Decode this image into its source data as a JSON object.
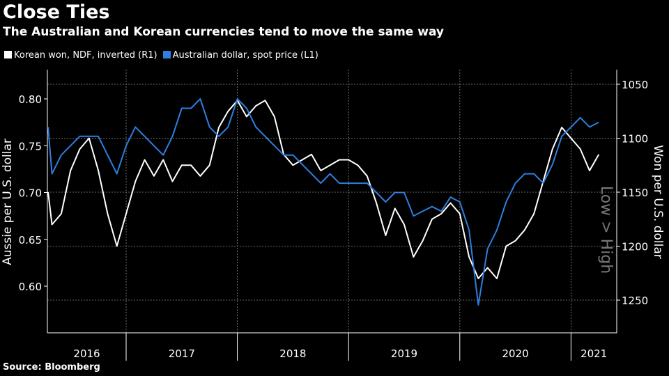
{
  "title": "Close Ties",
  "subtitle": "The Australian and Korean currencies tend to move the same way",
  "source": "Source: Bloomberg",
  "chart_data": {
    "type": "line",
    "title": "Close Ties",
    "ylabel_left": "Aussie per U.S. dollar",
    "ylabel_right": "Won per U.S. dollar",
    "right_axis_note": "Low > High",
    "right_axis_inverted": true,
    "ylim_left": [
      0.57,
      0.83
    ],
    "ylim_right": [
      1285,
      1035
    ],
    "left_ticks": [
      "0.80",
      "0.75",
      "0.70",
      "0.65",
      "0.60"
    ],
    "right_ticks": [
      "1050",
      "1100",
      "1150",
      "1200",
      "1250"
    ],
    "x_labels": [
      "2016",
      "2017",
      "2018",
      "2019",
      "2020",
      "2021"
    ],
    "x_start": "2016-04",
    "x_end": "2021-04",
    "grid": true,
    "legend": "top-left",
    "series": [
      {
        "name": "Korean won, NDF, inverted (R1)",
        "axis": "right",
        "color": "#ffffff",
        "values": [
          1150,
          1180,
          1170,
          1130,
          1110,
          1100,
          1130,
          1170,
          1200,
          1170,
          1140,
          1120,
          1135,
          1120,
          1140,
          1125,
          1125,
          1135,
          1125,
          1090,
          1075,
          1065,
          1080,
          1070,
          1065,
          1080,
          1115,
          1125,
          1120,
          1115,
          1130,
          1125,
          1120,
          1120,
          1125,
          1135,
          1160,
          1190,
          1165,
          1180,
          1210,
          1195,
          1175,
          1170,
          1160,
          1170,
          1210,
          1230,
          1220,
          1230,
          1200,
          1195,
          1185,
          1170,
          1140,
          1110,
          1090,
          1100,
          1110,
          1130,
          1115
        ]
      },
      {
        "name": "Australian dollar, spot price (L1)",
        "axis": "left",
        "color": "#2e7fe0",
        "values": [
          0.77,
          0.72,
          0.74,
          0.75,
          0.76,
          0.76,
          0.76,
          0.74,
          0.72,
          0.75,
          0.77,
          0.76,
          0.75,
          0.74,
          0.76,
          0.79,
          0.79,
          0.8,
          0.77,
          0.76,
          0.77,
          0.8,
          0.79,
          0.77,
          0.76,
          0.75,
          0.74,
          0.74,
          0.73,
          0.72,
          0.71,
          0.72,
          0.71,
          0.71,
          0.71,
          0.71,
          0.7,
          0.69,
          0.7,
          0.7,
          0.675,
          0.68,
          0.685,
          0.68,
          0.695,
          0.69,
          0.66,
          0.58,
          0.64,
          0.66,
          0.69,
          0.71,
          0.72,
          0.72,
          0.71,
          0.73,
          0.76,
          0.77,
          0.78,
          0.77,
          0.775
        ]
      }
    ]
  }
}
